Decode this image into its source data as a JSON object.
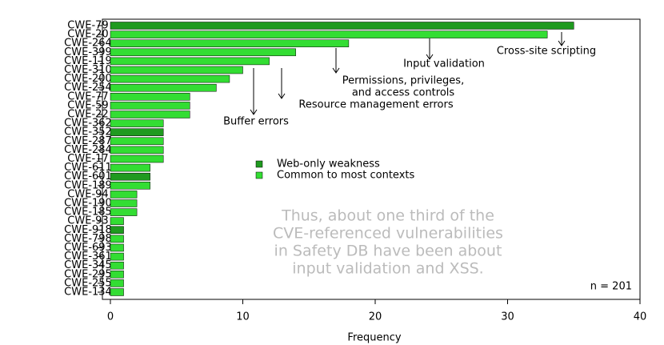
{
  "chart_data": {
    "type": "bar",
    "orientation": "horizontal",
    "x_label": "Frequency",
    "categories": [
      "CWE-79",
      "CWE-20",
      "CWE-264",
      "CWE-399",
      "CWE-119",
      "CWE-310",
      "CWE-200",
      "CWE-254",
      "CWE-77",
      "CWE-59",
      "CWE-22",
      "CWE-362",
      "CWE-352",
      "CWE-287",
      "CWE-284",
      "CWE-17",
      "CWE-611",
      "CWE-601",
      "CWE-189",
      "CWE-94",
      "CWE-190",
      "CWE-185",
      "CWE-93",
      "CWE-918",
      "CWE-798",
      "CWE-693",
      "CWE-361",
      "CWE-345",
      "CWE-295",
      "CWE-255",
      "CWE-134"
    ],
    "values": [
      35,
      33,
      18,
      14,
      12,
      10,
      9,
      8,
      6,
      6,
      6,
      4,
      4,
      4,
      4,
      4,
      3,
      3,
      3,
      2,
      2,
      2,
      1,
      1,
      1,
      1,
      1,
      1,
      1,
      1,
      1
    ],
    "groups": [
      0,
      1,
      1,
      1,
      1,
      1,
      1,
      1,
      1,
      1,
      1,
      1,
      0,
      1,
      1,
      1,
      1,
      0,
      1,
      1,
      1,
      1,
      1,
      0,
      1,
      1,
      1,
      1,
      1,
      1,
      1
    ],
    "legend": [
      {
        "name": "Web-only weakness",
        "color": "#1f9a1f"
      },
      {
        "name": "Common to most contexts",
        "color": "#33dd33"
      }
    ],
    "xlim": [
      0,
      40
    ],
    "xticks": [
      0,
      10,
      20,
      30,
      40
    ],
    "annotations": [
      {
        "lines": [
          "Cross-site scripting"
        ]
      },
      {
        "lines": [
          "Input validation"
        ]
      },
      {
        "lines": [
          "Permissions, privileges,",
          "and access controls"
        ]
      },
      {
        "lines": [
          "Resource management errors"
        ]
      },
      {
        "lines": [
          "Buffer errors"
        ]
      }
    ],
    "note_lines": [
      "Thus, about one third of the",
      "CVE-referenced vulnerabilities",
      "in Safety DB have been about",
      "input validation and XSS."
    ],
    "n_label": "n = 201"
  }
}
